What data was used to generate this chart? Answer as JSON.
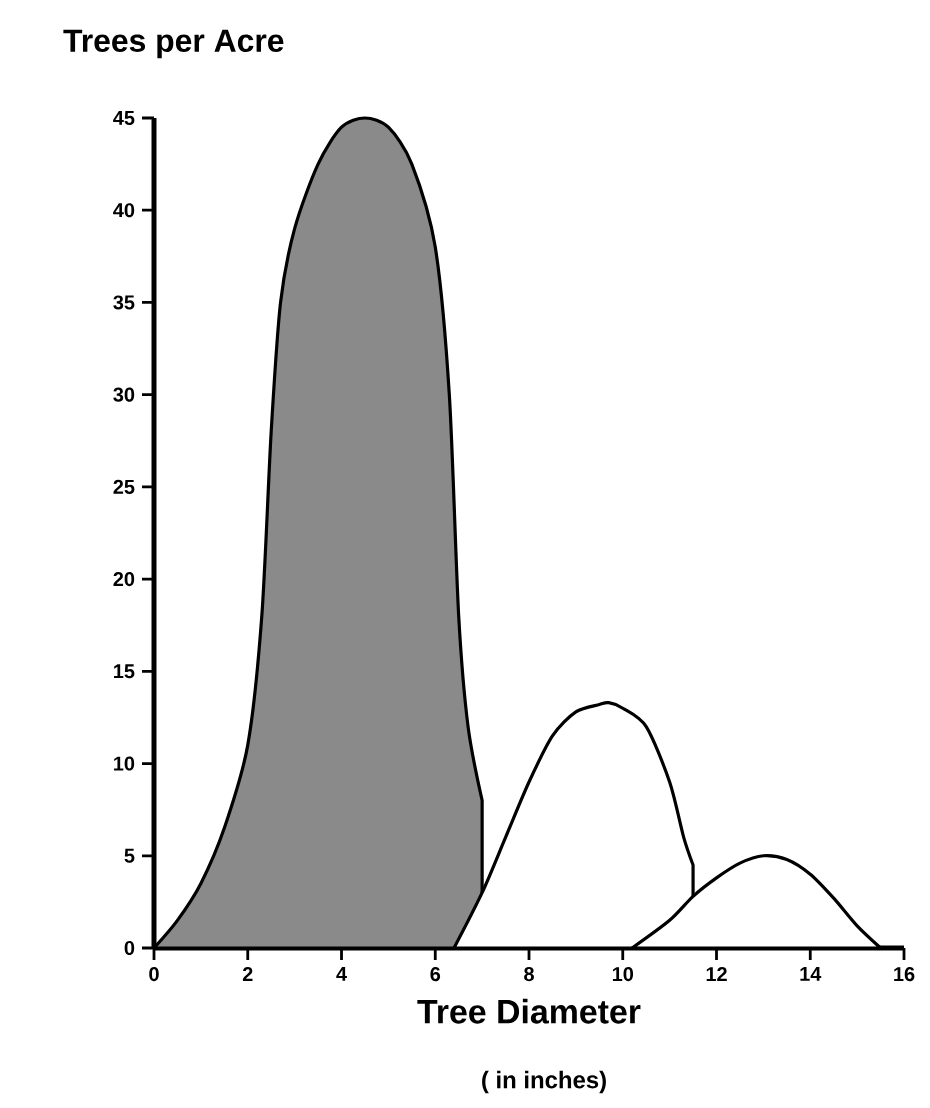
{
  "chart_data": {
    "type": "area",
    "ylabel": "Trees per Acre",
    "xlabel": "Tree Diameter",
    "annotations": [
      "( in inches)"
    ],
    "xlim": [
      0,
      16
    ],
    "ylim": [
      0,
      45
    ],
    "xticks": [
      0,
      2,
      4,
      6,
      8,
      10,
      12,
      14,
      16
    ],
    "yticks": [
      0,
      5,
      10,
      15,
      20,
      25,
      30,
      35,
      40,
      45
    ],
    "grid": false,
    "series": [
      {
        "color": "#8a8a8a",
        "x": [
          0,
          0.5,
          1,
          1.5,
          2,
          2.3,
          2.5,
          2.7,
          3,
          3.5,
          4,
          4.5,
          5,
          5.5,
          6,
          6.3,
          6.5,
          6.7,
          7
        ],
        "values": [
          0,
          1.5,
          3.5,
          6.5,
          11,
          18,
          28,
          35,
          39,
          42.5,
          44.5,
          45,
          44.5,
          42.5,
          38,
          30,
          18,
          12,
          8
        ]
      },
      {
        "color": "#ffffff",
        "x": [
          6.4,
          7,
          7.5,
          8,
          8.5,
          9,
          9.5,
          9.7,
          10,
          10.5,
          11,
          11.3,
          11.5
        ],
        "values": [
          0,
          3,
          6,
          9,
          11.5,
          12.8,
          13.2,
          13.3,
          13,
          12,
          9,
          6,
          4.5
        ]
      },
      {
        "color": "#ffffff",
        "x": [
          10.2,
          11,
          11.5,
          12,
          12.5,
          13,
          13.5,
          14,
          14.5,
          15,
          15.5
        ],
        "values": [
          0,
          1.5,
          2.8,
          3.8,
          4.6,
          5,
          4.8,
          4,
          2.7,
          1.2,
          0
        ]
      }
    ]
  }
}
